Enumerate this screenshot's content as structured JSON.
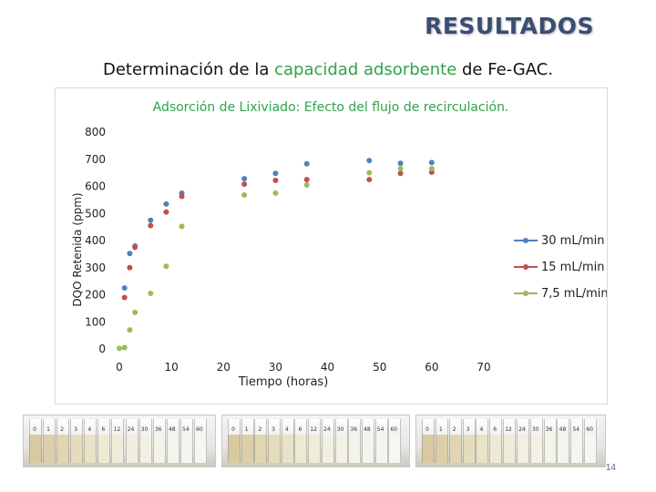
{
  "slide": {
    "title": "RESULTADOS",
    "subtitle_before": "Determinación de la ",
    "subtitle_highlight": "capacidad adsorbente",
    "subtitle_after": " de Fe-GAC.",
    "page_number": "14",
    "highlight_color": "#2fa34a"
  },
  "photos": [
    {
      "tube_labels": [
        "0",
        "1",
        "2",
        "3",
        "4",
        "6",
        "12",
        "24",
        "30",
        "36",
        "48",
        "54",
        "60"
      ]
    },
    {
      "tube_labels": [
        "0",
        "1",
        "2",
        "3",
        "4",
        "6",
        "12",
        "24",
        "30",
        "36",
        "48",
        "54",
        "60"
      ]
    },
    {
      "tube_labels": [
        "0",
        "1",
        "2",
        "3",
        "4",
        "6",
        "12",
        "24",
        "30",
        "36",
        "48",
        "54",
        "60"
      ]
    }
  ],
  "chart_data": {
    "type": "scatter",
    "title": "Adsorción de Lixiviado: Efecto del flujo de recirculación.",
    "xlabel": "Tiempo (horas)",
    "ylabel": "DQO Retenida (ppm)",
    "xlim": [
      0,
      70
    ],
    "ylim": [
      0,
      800
    ],
    "xticks": [
      0,
      10,
      20,
      30,
      40,
      50,
      60,
      70
    ],
    "yticks": [
      0,
      100,
      200,
      300,
      400,
      500,
      600,
      700,
      800
    ],
    "grid": false,
    "legend_position": "right",
    "title_color": "#2fa34a",
    "series": [
      {
        "name": "30 mL/min",
        "color": "#4f81bd",
        "x": [
          1,
          2,
          3,
          6,
          9,
          12,
          24,
          30,
          36,
          48,
          54,
          60
        ],
        "y": [
          225,
          352,
          380,
          475,
          535,
          575,
          628,
          648,
          683,
          695,
          685,
          688
        ]
      },
      {
        "name": "15 mL/min",
        "color": "#c0504d",
        "x": [
          1,
          2,
          3,
          6,
          9,
          12,
          24,
          30,
          36,
          48,
          54,
          60
        ],
        "y": [
          190,
          300,
          375,
          455,
          505,
          563,
          608,
          622,
          625,
          625,
          648,
          652
        ]
      },
      {
        "name": "7,5 mL/min",
        "color": "#9bbb59",
        "x": [
          0,
          1,
          2,
          3,
          6,
          9,
          12,
          24,
          30,
          36,
          48,
          54,
          60
        ],
        "y": [
          2,
          5,
          70,
          135,
          205,
          305,
          452,
          568,
          575,
          605,
          650,
          665,
          665
        ]
      }
    ]
  }
}
